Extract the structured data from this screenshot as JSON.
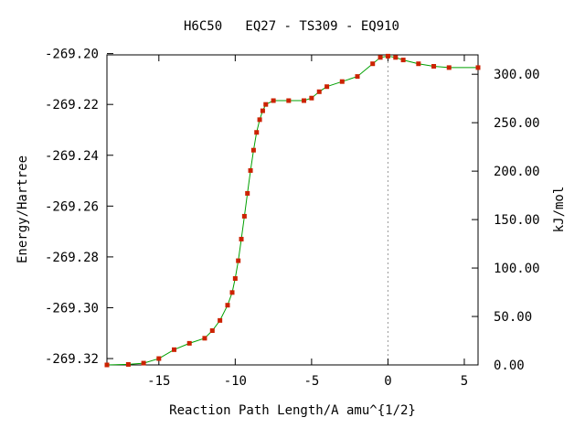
{
  "chart_data": {
    "type": "line",
    "title": "H6C50   EQ27 - TS309 - EQ910",
    "xlabel": "Reaction Path Length/A amu^{1/2}",
    "ylabel": "Energy/Hartree",
    "y2label": "kJ/mol",
    "xlim": [
      -18.4,
      5.9
    ],
    "ylim": [
      -269.3225,
      -269.2005
    ],
    "y2lim": [
      0,
      320
    ],
    "x_ticks": [
      {
        "value": -15,
        "label": "-15"
      },
      {
        "value": -10,
        "label": "-10"
      },
      {
        "value": -5,
        "label": "-5"
      },
      {
        "value": 0,
        "label": "0"
      },
      {
        "value": 5,
        "label": "5"
      }
    ],
    "y_ticks": [
      {
        "value": -269.2,
        "label": "-269.20"
      },
      {
        "value": -269.22,
        "label": "-269.22"
      },
      {
        "value": -269.24,
        "label": "-269.24"
      },
      {
        "value": -269.26,
        "label": "-269.26"
      },
      {
        "value": -269.28,
        "label": "-269.28"
      },
      {
        "value": -269.3,
        "label": "-269.30"
      },
      {
        "value": -269.32,
        "label": "-269.32"
      }
    ],
    "y2_ticks": [
      {
        "value": 0,
        "label": "0.00"
      },
      {
        "value": 50,
        "label": "50.00"
      },
      {
        "value": 100,
        "label": "100.00"
      },
      {
        "value": 150,
        "label": "150.00"
      },
      {
        "value": 200,
        "label": "200.00"
      },
      {
        "value": 250,
        "label": "250.00"
      },
      {
        "value": 300,
        "label": "300.00"
      }
    ],
    "ts_marker_x": 0,
    "grid": false,
    "line_color": "#00a000",
    "marker_color": "#cc2200",
    "series": [
      {
        "x": [
          -18.4,
          -17.0,
          -16.0,
          -15.0,
          -14.0,
          -13.0,
          -12.0,
          -11.5,
          -11.0,
          -10.5,
          -10.2,
          -10.0,
          -9.8,
          -9.6,
          -9.4,
          -9.2,
          -9.0,
          -8.8,
          -8.6,
          -8.4,
          -8.2,
          -8.0,
          -7.5,
          -6.5,
          -5.5,
          -5.0,
          -4.5,
          -4.0,
          -3.0,
          -2.0,
          -1.0,
          -0.5,
          0.0,
          0.5,
          1.0,
          2.0,
          3.0,
          4.0,
          5.9
        ],
        "y": [
          -269.3225,
          -269.3223,
          -269.3218,
          -269.32,
          -269.3165,
          -269.314,
          -269.312,
          -269.309,
          -269.305,
          -269.299,
          -269.294,
          -269.2885,
          -269.2815,
          -269.273,
          -269.264,
          -269.255,
          -269.246,
          -269.238,
          -269.231,
          -269.226,
          -269.2225,
          -269.22,
          -269.2185,
          -269.2185,
          -269.2185,
          -269.2175,
          -269.215,
          -269.213,
          -269.211,
          -269.209,
          -269.204,
          -269.2015,
          -269.201,
          -269.2015,
          -269.2025,
          -269.204,
          -269.205,
          -269.2055,
          -269.2055
        ]
      }
    ]
  }
}
